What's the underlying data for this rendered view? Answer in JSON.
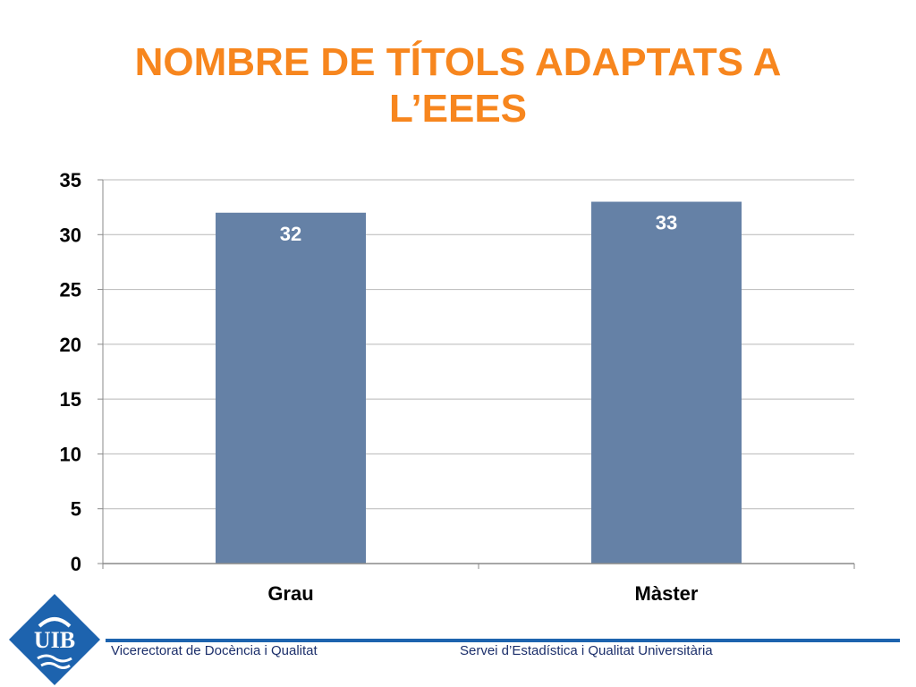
{
  "slide": {
    "title_line1": "NOMBRE DE TÍTOLS ADAPTATS A",
    "title_line2": "L’EEES",
    "footer_left": "Vicerectorat de Docència i Qualitat",
    "footer_right": "Servei d’Estadística i Qualitat Universitària",
    "logo_text": "UIB",
    "brand_color": "#1d63ae",
    "title_color": "#f7861e"
  },
  "chart_data": {
    "type": "bar",
    "categories": [
      "Grau",
      "Màster"
    ],
    "values": [
      32,
      33
    ],
    "data_labels": [
      "32",
      "33"
    ],
    "ylim": [
      0,
      35
    ],
    "yticks": [
      0,
      5,
      10,
      15,
      20,
      25,
      30,
      35
    ],
    "grid": true,
    "bar_color": "#6581a6",
    "legend": "none"
  }
}
